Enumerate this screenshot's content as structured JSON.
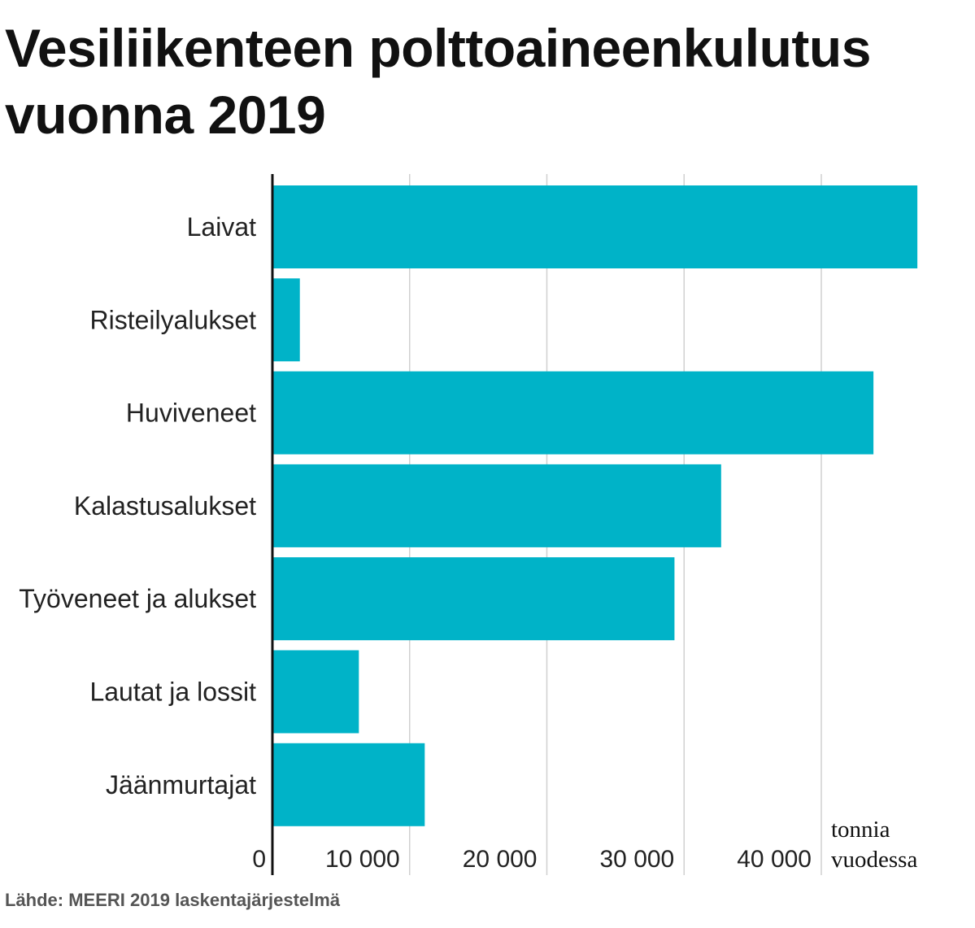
{
  "title": "Vesiliikenteen polttoaineenkulutus vuonna 2019",
  "source": "Lähde: MEERI 2019 laskentajärjestelmä",
  "colors": {
    "bar": "#00b3c8",
    "grid": "#d0d0d0",
    "axis": "#111111"
  },
  "chart_data": {
    "type": "bar",
    "orientation": "horizontal",
    "title": "Vesiliikenteen polttoaineenkulutus vuonna 2019",
    "categories": [
      "Laivat",
      "Risteilyalukset",
      "Huviveneet",
      "Kalastusalukset",
      "Työveneet ja alukset",
      "Lautat ja lossit",
      "Jäänmurtajat"
    ],
    "values": [
      47000,
      2000,
      43800,
      32700,
      29300,
      6300,
      11100
    ],
    "xlim": [
      0,
      47000
    ],
    "xticks": [
      0,
      10000,
      20000,
      30000,
      40000
    ],
    "xtick_labels": [
      "0",
      "10 000",
      "20 000",
      "30 000",
      "40 000"
    ],
    "xlabel_lines": [
      "tonnia",
      "vuodessa"
    ],
    "grid": true
  }
}
